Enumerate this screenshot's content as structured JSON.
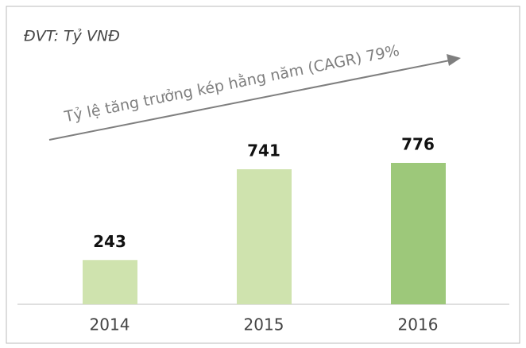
{
  "chart_data": {
    "type": "bar",
    "unit_label": "ĐVT: Tỷ VNĐ",
    "annotation": "Tỷ lệ tăng trưởng kép hằng năm (CAGR) 79%",
    "categories": [
      "2014",
      "2015",
      "2016"
    ],
    "values": [
      243,
      741,
      776
    ],
    "colors": [
      "#cfe3ae",
      "#cfe3ae",
      "#9dc87a"
    ]
  }
}
